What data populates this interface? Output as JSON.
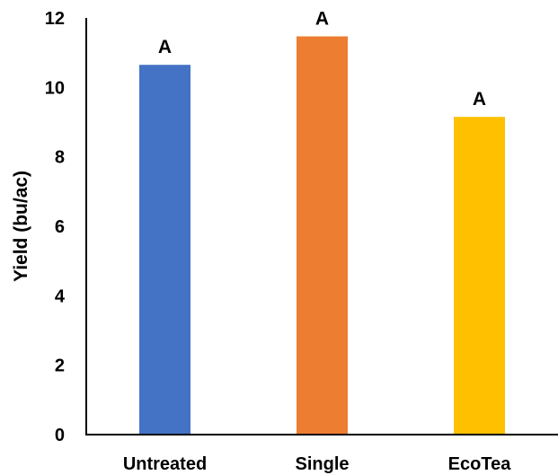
{
  "chart_data": {
    "type": "bar",
    "title": "",
    "xlabel": "",
    "ylabel": "Yield (bu/ac)",
    "categories": [
      "Untreated",
      "Single",
      "EcoTea"
    ],
    "values": [
      10.65,
      11.47,
      9.15
    ],
    "significance_labels": [
      "A",
      "A",
      "A"
    ],
    "colors": [
      "#4472C4",
      "#ED7D31",
      "#FFC000"
    ],
    "ylim": [
      0,
      12
    ],
    "yticks": [
      "0",
      "2",
      "4",
      "6",
      "8",
      "10",
      "12"
    ],
    "grid": false,
    "legend": "none"
  }
}
